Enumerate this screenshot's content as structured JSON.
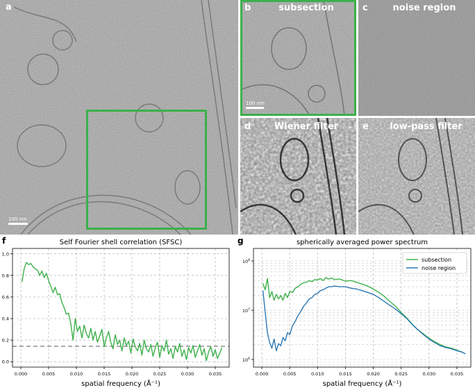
{
  "panels": {
    "a": {
      "label": "a",
      "scalebar": "100 nm"
    },
    "b": {
      "label": "b",
      "title": "subsection",
      "scalebar": "100 nm"
    },
    "c": {
      "label": "c",
      "title": "noise region"
    },
    "d": {
      "label": "d",
      "title": "Wiener filter"
    },
    "e": {
      "label": "e",
      "title": "low-pass filter"
    }
  },
  "colors": {
    "green": "#3cb04a",
    "blue": "#2a77b4",
    "dashed": "#555555"
  },
  "chart_data": [
    {
      "panel": "f",
      "type": "line",
      "title": "Self Fourier shell correlation (SFSC)",
      "xlabel": "spatial frequency (Å⁻¹)",
      "ylabel": "",
      "xlim": [
        -0.0015,
        0.0375
      ],
      "ylim": [
        -0.05,
        1.05
      ],
      "xticks": [
        "0.000",
        "0.005",
        "0.010",
        "0.015",
        "0.020",
        "0.025",
        "0.030",
        "0.035"
      ],
      "yticks": [
        "0.0",
        "0.2",
        "0.4",
        "0.6",
        "0.8",
        "1.0"
      ],
      "threshold": 0.143,
      "grid": true,
      "series": [
        {
          "color": "#3cb04a",
          "x": [
            0.0002,
            0.0006,
            0.001,
            0.0014,
            0.0018,
            0.0022,
            0.0026,
            0.003,
            0.0034,
            0.0038,
            0.0042,
            0.0046,
            0.005,
            0.0054,
            0.0058,
            0.0062,
            0.0066,
            0.007,
            0.0074,
            0.0078,
            0.0082,
            0.0086,
            0.009,
            0.0094,
            0.0098,
            0.0102,
            0.0106,
            0.011,
            0.0114,
            0.0118,
            0.0122,
            0.0126,
            0.013,
            0.0134,
            0.0138,
            0.0142,
            0.0146,
            0.015,
            0.0154,
            0.0158,
            0.0162,
            0.0166,
            0.017,
            0.0174,
            0.0178,
            0.0182,
            0.0186,
            0.019,
            0.0194,
            0.0198,
            0.0202,
            0.0206,
            0.021,
            0.0214,
            0.0218,
            0.0222,
            0.0226,
            0.023,
            0.0234,
            0.0238,
            0.0242,
            0.0246,
            0.025,
            0.0254,
            0.0258,
            0.0262,
            0.0266,
            0.027,
            0.0274,
            0.0278,
            0.0282,
            0.0286,
            0.029,
            0.0294,
            0.0298,
            0.0302,
            0.0306,
            0.031,
            0.0314,
            0.0318,
            0.0322,
            0.0326,
            0.033,
            0.0334,
            0.0338,
            0.0342,
            0.0346,
            0.035,
            0.0354,
            0.0358,
            0.0362
          ],
          "y": [
            0.74,
            0.86,
            0.92,
            0.9,
            0.91,
            0.88,
            0.86,
            0.85,
            0.8,
            0.84,
            0.78,
            0.82,
            0.75,
            0.7,
            0.64,
            0.69,
            0.62,
            0.63,
            0.55,
            0.5,
            0.44,
            0.45,
            0.35,
            0.2,
            0.4,
            0.28,
            0.33,
            0.22,
            0.34,
            0.26,
            0.22,
            0.31,
            0.2,
            0.28,
            0.18,
            0.24,
            0.3,
            0.14,
            0.22,
            0.28,
            0.18,
            0.12,
            0.25,
            0.16,
            0.2,
            0.1,
            0.22,
            0.15,
            0.19,
            0.08,
            0.21,
            0.14,
            0.1,
            0.17,
            0.06,
            0.2,
            0.12,
            0.09,
            0.16,
            0.05,
            0.13,
            0.18,
            0.04,
            0.15,
            0.1,
            0.2,
            0.07,
            0.12,
            0.03,
            0.14,
            0.09,
            0.17,
            0.05,
            0.11,
            0.02,
            0.13,
            0.08,
            0.15,
            0.04,
            0.1,
            0.16,
            0.06,
            0.12,
            0.01,
            0.09,
            0.14,
            0.05,
            0.11,
            0.03,
            0.08,
            0.13
          ]
        }
      ]
    },
    {
      "panel": "g",
      "type": "line",
      "title": "spherically averaged power spectrum",
      "xlabel": "spatial frequency (Å⁻¹)",
      "ylabel": "",
      "yscale": "log",
      "xlim": [
        -0.0015,
        0.0375
      ],
      "ylim": [
        700000,
        180000000
      ],
      "xticks": [
        "0.000",
        "0.005",
        "0.010",
        "0.015",
        "0.020",
        "0.025",
        "0.030",
        "0.035"
      ],
      "ylog_ticks": [
        6,
        7,
        8
      ],
      "legend": "top-right",
      "grid": true,
      "series": [
        {
          "name": "subsection",
          "color": "#3cb04a",
          "x": [
            0.0002,
            0.0006,
            0.001,
            0.0014,
            0.0018,
            0.0022,
            0.0026,
            0.003,
            0.0034,
            0.0038,
            0.0042,
            0.0046,
            0.005,
            0.0055,
            0.006,
            0.0065,
            0.007,
            0.0075,
            0.008,
            0.0085,
            0.009,
            0.0095,
            0.01,
            0.0105,
            0.011,
            0.0115,
            0.012,
            0.0125,
            0.013,
            0.014,
            0.015,
            0.016,
            0.017,
            0.018,
            0.019,
            0.02,
            0.021,
            0.022,
            0.023,
            0.024,
            0.025,
            0.026,
            0.027,
            0.028,
            0.029,
            0.03,
            0.031,
            0.032,
            0.033,
            0.034,
            0.035,
            0.036,
            0.0365
          ],
          "y": [
            35000000,
            26000000,
            44000000,
            18000000,
            24000000,
            16000000,
            21000000,
            17000000,
            20000000,
            16000000,
            22000000,
            18000000,
            24000000,
            23000000,
            28000000,
            30000000,
            34000000,
            36000000,
            37000000,
            40000000,
            38000000,
            42000000,
            41000000,
            44000000,
            40000000,
            46000000,
            43000000,
            45000000,
            42000000,
            43000000,
            39000000,
            40000000,
            37000000,
            34000000,
            31000000,
            27000000,
            23000000,
            19000000,
            15000000,
            12000000,
            9000000,
            7000000,
            5200000,
            4000000,
            3300000,
            2700000,
            2300000,
            2000000,
            1800000,
            1700000,
            1550000,
            1400000,
            1300000
          ]
        },
        {
          "name": "noise region",
          "color": "#2a77b4",
          "x": [
            0.0002,
            0.0006,
            0.001,
            0.0014,
            0.0018,
            0.0022,
            0.0026,
            0.003,
            0.0034,
            0.0038,
            0.0042,
            0.0046,
            0.005,
            0.0055,
            0.006,
            0.0065,
            0.007,
            0.0075,
            0.008,
            0.0085,
            0.009,
            0.0095,
            0.01,
            0.0105,
            0.011,
            0.0115,
            0.012,
            0.0125,
            0.013,
            0.014,
            0.015,
            0.016,
            0.017,
            0.018,
            0.019,
            0.02,
            0.021,
            0.022,
            0.023,
            0.024,
            0.025,
            0.026,
            0.027,
            0.028,
            0.029,
            0.03,
            0.031,
            0.032,
            0.033,
            0.034,
            0.035,
            0.036,
            0.0365
          ],
          "y": [
            25000000,
            9000000,
            3500000,
            2200000,
            1700000,
            2600000,
            1500000,
            2100000,
            1900000,
            2800000,
            2400000,
            3500000,
            3200000,
            4800000,
            6000000,
            7800000,
            9500000,
            12000000,
            14000000,
            17000000,
            18000000,
            21000000,
            22000000,
            25000000,
            26000000,
            28000000,
            30000000,
            30000000,
            31000000,
            30000000,
            30000000,
            28000000,
            27000000,
            25000000,
            23000000,
            21000000,
            18000000,
            15000000,
            12500000,
            10500000,
            8500000,
            6800000,
            5100000,
            4000000,
            3200000,
            2600000,
            2200000,
            1900000,
            1750000,
            1650000,
            1500000,
            1400000,
            1300000
          ]
        }
      ]
    }
  ]
}
